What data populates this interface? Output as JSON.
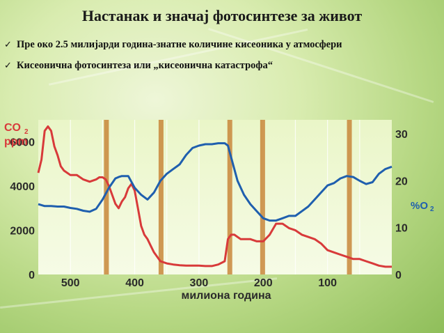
{
  "title": "Настанак и значај фотосинтезе за живот",
  "bullets": [
    "Пре око 2.5 милијарди година-знатне количине кисеоника у атмосфери",
    "Кисеонична фотосинтеза или „кисеонична катастрофа“"
  ],
  "bullet_icon": "checkmark-icon",
  "colors": {
    "co2": "#d83a3a",
    "o2": "#1f5fae",
    "band": "#c8863a",
    "axis_text": "#2a2a2a",
    "right_label": "#1f5fae",
    "left_label": "#d83a3a"
  },
  "chart_data": {
    "type": "line",
    "xlabel": "милиона година",
    "x_ticks": [
      "500",
      "400",
      "300",
      "200",
      "100"
    ],
    "xlim": [
      550,
      0
    ],
    "left_axis": {
      "label_line1": "CO",
      "label_sub": "2",
      "label_line2": "ppm",
      "ticks": [
        "6000",
        "4000",
        "2000",
        "0"
      ],
      "ylim": [
        0,
        7000
      ]
    },
    "right_axis": {
      "label": "%O",
      "label_sub": "2",
      "ticks": [
        "30",
        "20",
        "10",
        "0"
      ],
      "ylim": [
        0,
        33
      ]
    },
    "event_bands_mya": [
      444,
      359,
      252,
      201,
      66
    ],
    "series": [
      {
        "x": [
          550,
          545,
          540,
          535,
          530,
          525,
          520,
          515,
          510,
          500,
          490,
          480,
          470,
          460,
          455,
          450,
          445,
          440,
          430,
          425,
          420,
          415,
          410,
          405,
          400,
          395,
          390,
          385,
          380,
          375,
          370,
          360,
          350,
          340,
          330,
          320,
          310,
          300,
          290,
          280,
          270,
          260,
          255,
          250,
          245,
          240,
          235,
          230,
          220,
          210,
          200,
          190,
          180,
          175,
          170,
          165,
          160,
          150,
          140,
          130,
          120,
          110,
          100,
          90,
          80,
          70,
          60,
          50,
          40,
          30,
          20,
          10,
          0
        ],
        "y": [
          4600,
          5200,
          6500,
          6700,
          6500,
          5800,
          5400,
          4900,
          4700,
          4500,
          4500,
          4300,
          4200,
          4300,
          4400,
          4400,
          4300,
          4000,
          3200,
          3000,
          3300,
          3500,
          3900,
          4100,
          3800,
          3000,
          2200,
          1800,
          1600,
          1300,
          1000,
          600,
          500,
          450,
          420,
          400,
          400,
          400,
          380,
          380,
          450,
          600,
          1600,
          1800,
          1800,
          1700,
          1600,
          1600,
          1600,
          1500,
          1500,
          1800,
          2300,
          2300,
          2300,
          2200,
          2100,
          2000,
          1800,
          1700,
          1600,
          1400,
          1100,
          1000,
          900,
          800,
          700,
          700,
          600,
          500,
          400,
          350,
          350
        ]
      },
      {
        "x": [
          550,
          540,
          530,
          520,
          510,
          500,
          490,
          480,
          470,
          460,
          450,
          440,
          430,
          425,
          420,
          410,
          400,
          390,
          380,
          370,
          360,
          350,
          340,
          330,
          320,
          310,
          300,
          290,
          280,
          270,
          260,
          255,
          250,
          240,
          230,
          220,
          210,
          200,
          190,
          180,
          170,
          160,
          150,
          140,
          130,
          120,
          110,
          100,
          90,
          80,
          70,
          60,
          50,
          40,
          30,
          20,
          10,
          0
        ],
        "y": [
          15,
          14.6,
          14.6,
          14.5,
          14.5,
          14.2,
          14,
          13.6,
          13.4,
          14,
          16,
          18.5,
          20.5,
          20.8,
          21,
          21,
          18.5,
          17,
          16,
          17.5,
          20,
          21.5,
          22.5,
          23.5,
          25.5,
          27,
          27.5,
          27.8,
          27.8,
          28,
          28,
          27.5,
          25,
          20,
          17,
          15,
          13.5,
          12,
          11.5,
          11.5,
          12,
          12.5,
          12.5,
          13.5,
          14.5,
          16,
          17.5,
          19,
          19.5,
          20.5,
          21,
          20.8,
          20,
          19.3,
          19.7,
          21.5,
          22.5,
          23
        ]
      }
    ]
  }
}
